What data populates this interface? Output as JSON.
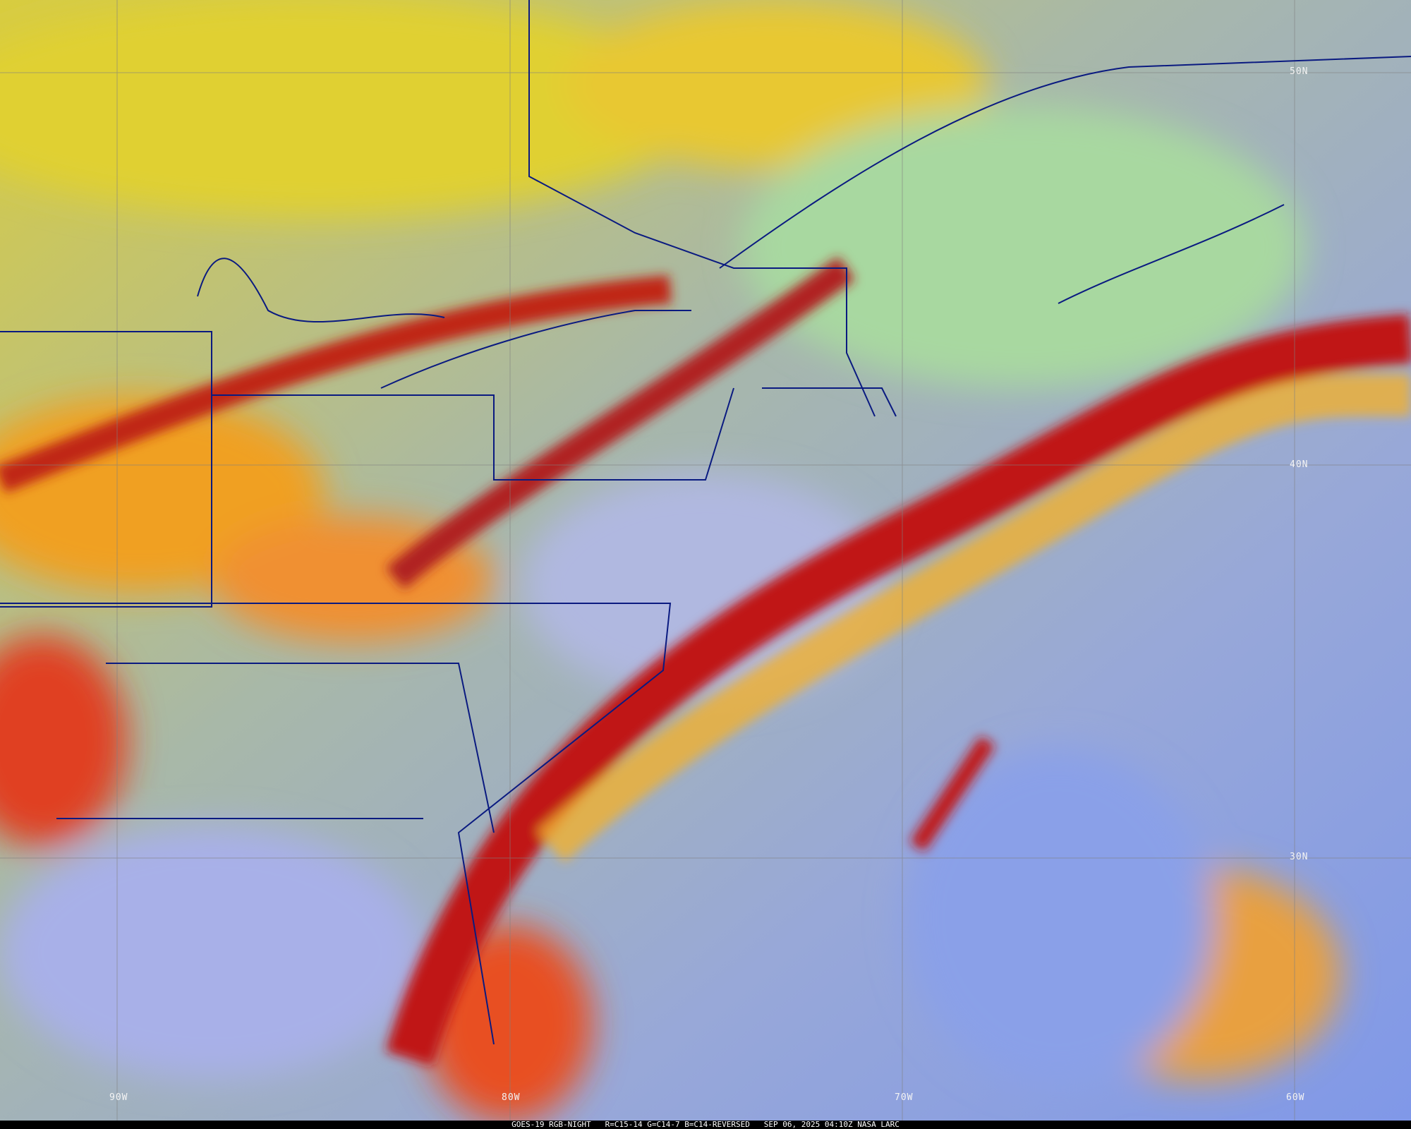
{
  "caption": "GOES-19 RGB-NIGHT   R=C15-14 G=C14-7 B=C14-REVERSED   SEP 06, 2025 04:10Z NASA LARC",
  "lat_labels": [
    "50N",
    "40N",
    "30N"
  ],
  "lon_labels": [
    "90W",
    "80W",
    "70W",
    "60W"
  ],
  "colors": {
    "ocean": "#8fa4e0",
    "high_cloud": "#c41a1a",
    "mid_cloud": "#f0a020",
    "low_cloud": "#d8d040",
    "clear_land": "#a8c0a0",
    "borders": "#0a1a80"
  }
}
